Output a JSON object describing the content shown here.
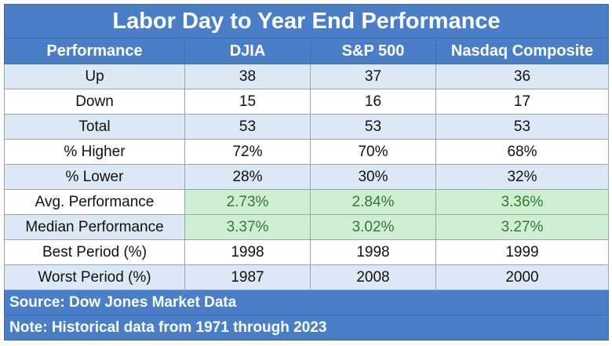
{
  "chart_data": {
    "type": "table",
    "title": "Labor Day to Year End Performance",
    "columns": [
      "Performance",
      "DJIA",
      "S&P 500",
      "Nasdaq Composite"
    ],
    "rows": [
      {
        "label": "Up",
        "values": [
          "38",
          "37",
          "36"
        ]
      },
      {
        "label": "Down",
        "values": [
          "15",
          "16",
          "17"
        ]
      },
      {
        "label": "Total",
        "values": [
          "53",
          "53",
          "53"
        ]
      },
      {
        "label": "% Higher",
        "values": [
          "72%",
          "70%",
          "68%"
        ]
      },
      {
        "label": "% Lower",
        "values": [
          "28%",
          "30%",
          "32%"
        ]
      },
      {
        "label": "Avg. Performance",
        "values": [
          "2.73%",
          "2.84%",
          "3.36%"
        ],
        "highlight": true
      },
      {
        "label": "Median Performance",
        "values": [
          "3.37%",
          "3.02%",
          "3.27%"
        ],
        "highlight": true
      },
      {
        "label": "Best Period (%)",
        "values": [
          "1998",
          "1998",
          "1999"
        ]
      },
      {
        "label": "Worst Period (%)",
        "values": [
          "1987",
          "2008",
          "2000"
        ]
      }
    ],
    "source": "Source: Dow Jones Market Data",
    "note": "Note: Historical data from 1971 through 2023"
  },
  "colors": {
    "header": "#4a7fc8",
    "row_alt": "#dce8f5",
    "highlight_bg": "#cfeed2",
    "highlight_text": "#2e7d32"
  }
}
